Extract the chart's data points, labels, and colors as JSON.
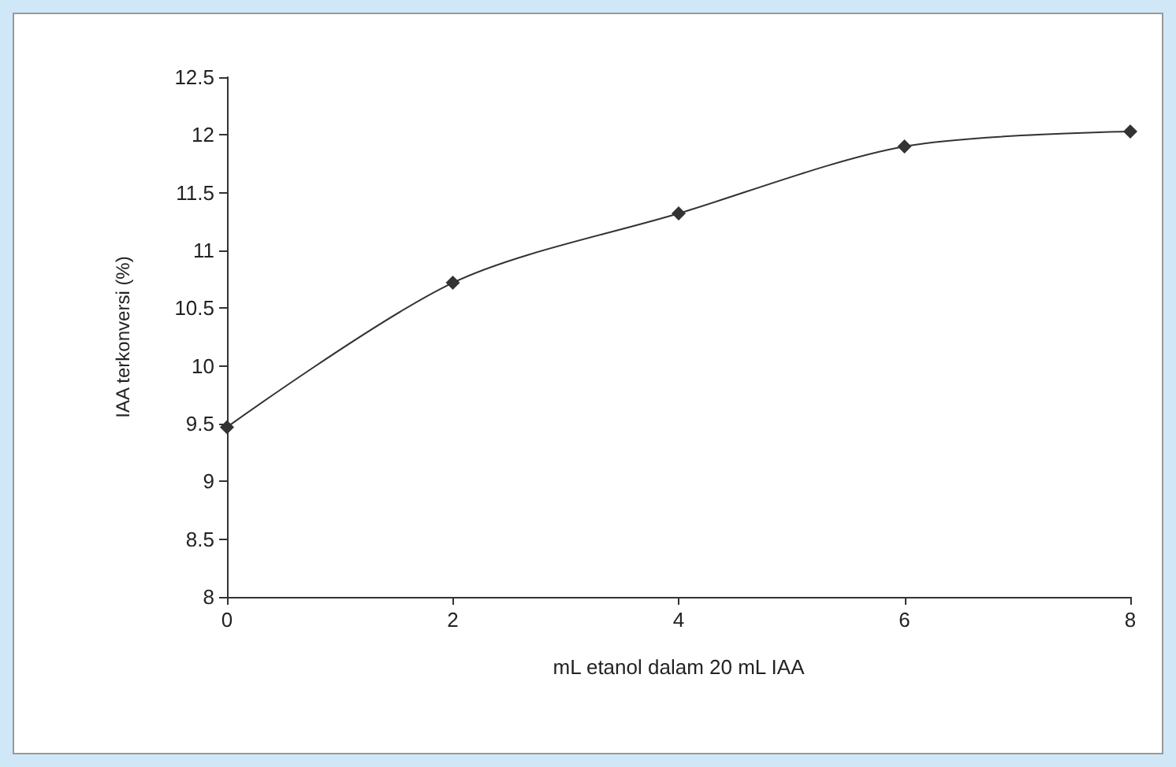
{
  "chart_data": {
    "type": "line",
    "xlabel": "mL etanol dalam 20 mL IAA",
    "ylabel": "IAA terkonversi (%)",
    "x": [
      0,
      2,
      4,
      6,
      8
    ],
    "series": [
      {
        "color": "#333333",
        "values": [
          9.47,
          10.72,
          11.32,
          11.9,
          12.03
        ]
      }
    ],
    "xlim": [
      0,
      8
    ],
    "xticks": [
      0,
      2,
      4,
      6,
      8
    ],
    "ylim": [
      8,
      12.5
    ],
    "yticks": [
      8,
      8.5,
      9,
      9.5,
      10,
      10.5,
      11,
      11.5,
      12,
      12.5
    ],
    "grid": false,
    "marker": "diamond",
    "line_style": "solid"
  }
}
